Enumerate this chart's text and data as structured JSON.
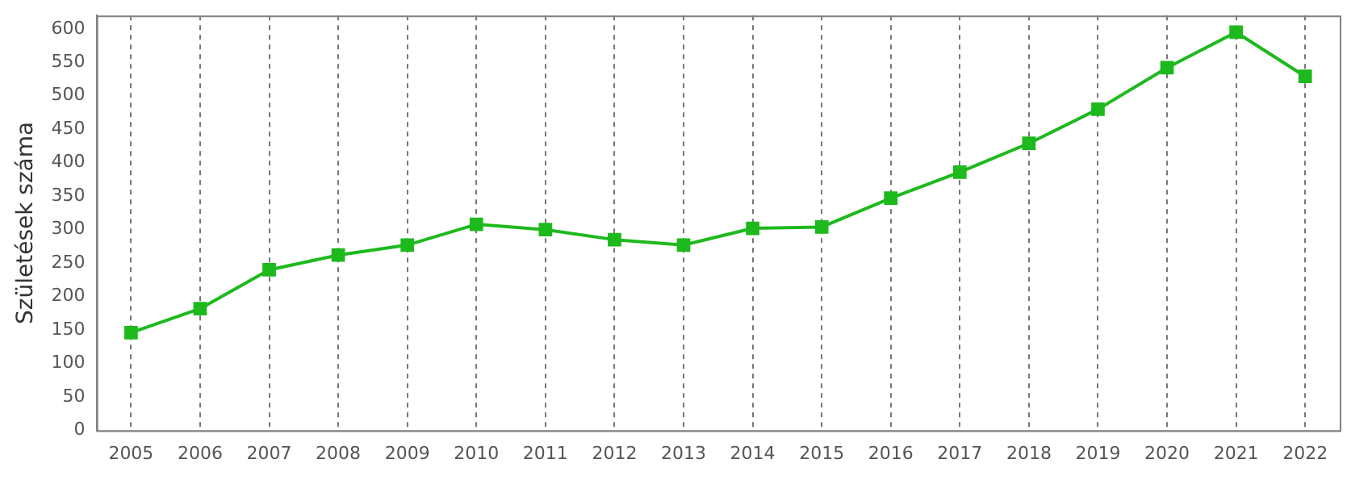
{
  "chart_data": {
    "type": "line",
    "ylabel": "Születések száma",
    "categories": [
      "2005",
      "2006",
      "2007",
      "2008",
      "2009",
      "2010",
      "2011",
      "2012",
      "2013",
      "2014",
      "2015",
      "2016",
      "2017",
      "2018",
      "2019",
      "2020",
      "2021",
      "2022"
    ],
    "series": [
      {
        "color": "#1db91d",
        "values": [
          146,
          182,
          240,
          262,
          277,
          308,
          300,
          285,
          277,
          302,
          304,
          347,
          386,
          429,
          480,
          542,
          595,
          529
        ]
      }
    ],
    "ylim": [
      0,
      620
    ],
    "yticks": [
      0,
      50,
      100,
      150,
      200,
      250,
      300,
      350,
      400,
      450,
      500,
      550,
      600
    ],
    "grid": "x",
    "marker": "square",
    "line_style": "solid",
    "legend": false
  }
}
